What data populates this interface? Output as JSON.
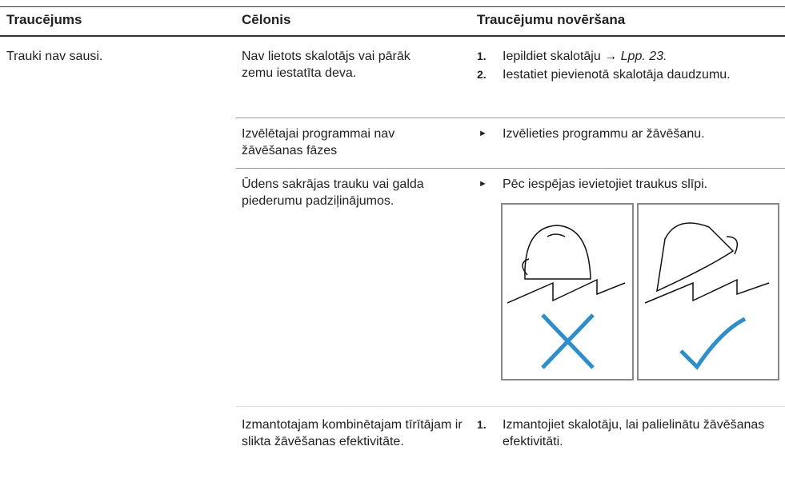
{
  "table": {
    "headers": [
      "Traucējums",
      "Cēlonis",
      "Traucējumu novēršana"
    ],
    "problem": "Trauki nav sausi.",
    "rows": [
      {
        "cause": "Nav lietots skalotājs vai pārāk zemu iestatīta deva.",
        "steps": [
          {
            "num": "1.",
            "text": "Iepildiet skalotāju →",
            "ref": "Lpp. 23."
          },
          {
            "num": "2.",
            "text": "Iestatiet pievienotā skalotāja daudzumu."
          }
        ]
      },
      {
        "cause": "Izvēlētajai programmai nav žāvēšanas fāzes",
        "bullet": "Izvēlieties programmu ar žāvēšanu."
      },
      {
        "cause": "Ūdens sakrājas trauku vai galda piederumu padziļinājumos.",
        "bullet": "Pēc iespējas ievietojiet traukus slīpi."
      },
      {
        "cause": "Izmantotajam kombinētajam tīrītājam ir slikta žāvēšanas efektivitāte.",
        "steps": [
          {
            "num": "1.",
            "text": "Izmantojiet skalotāju, lai palielinātu žāvēšanas efektivitāti."
          }
        ]
      }
    ]
  }
}
